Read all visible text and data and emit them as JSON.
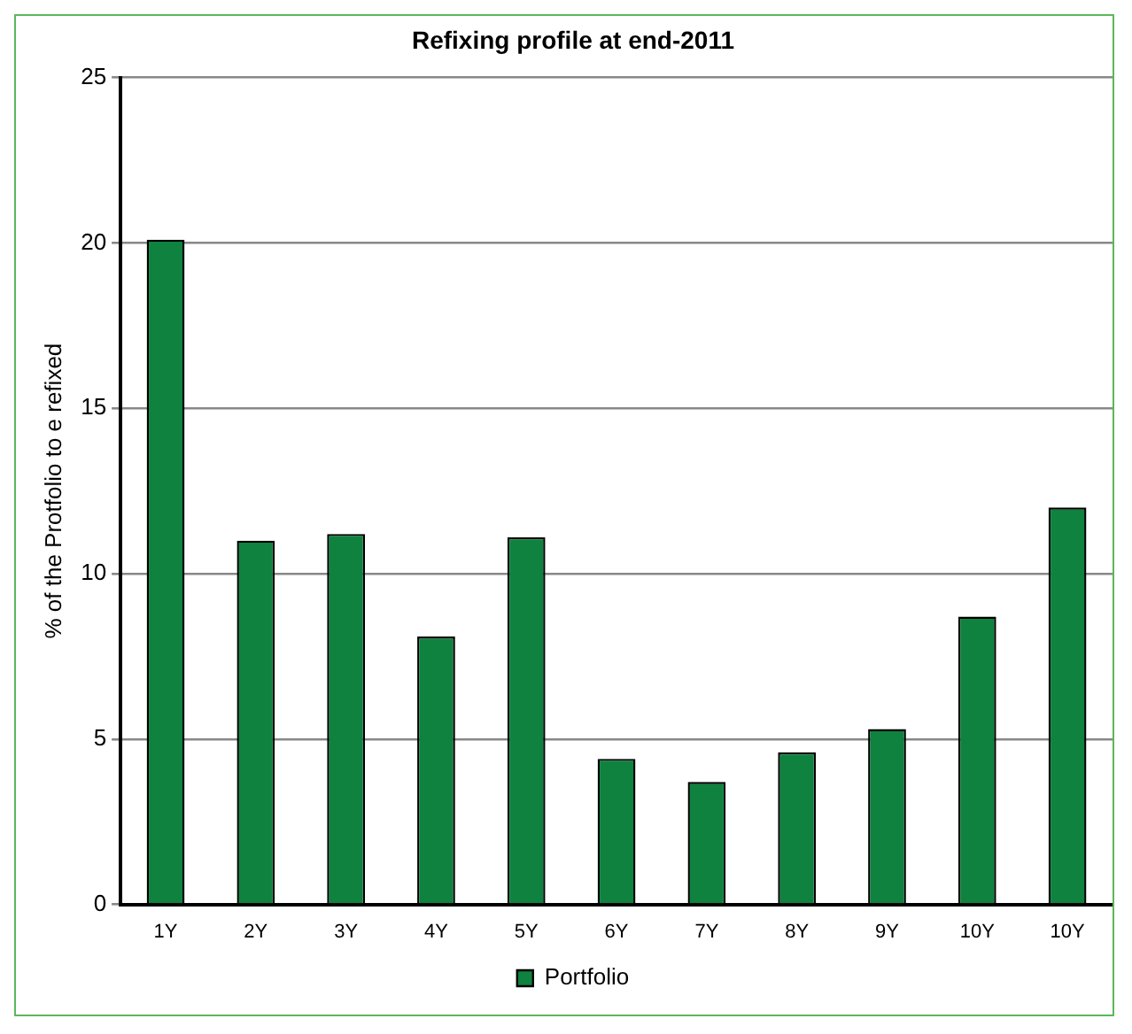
{
  "chart_data": {
    "type": "bar",
    "title": "Refixing profile at end-2011",
    "ylabel": "% of the Protfolio to e refixed",
    "categories": [
      "1Y",
      "2Y",
      "3Y",
      "4Y",
      "5Y",
      "6Y",
      "7Y",
      "8Y",
      "9Y",
      "10Y",
      "10Y"
    ],
    "series": [
      {
        "name": "Portfolio",
        "color": "#0e823e",
        "values": [
          20.1,
          11.0,
          11.2,
          8.1,
          11.1,
          4.4,
          3.7,
          4.6,
          5.3,
          8.7,
          12.0
        ]
      }
    ],
    "ylim": [
      0,
      25
    ],
    "yticks": [
      0,
      5,
      10,
      15,
      20,
      25
    ],
    "grid": "y",
    "legend": "bottom"
  }
}
